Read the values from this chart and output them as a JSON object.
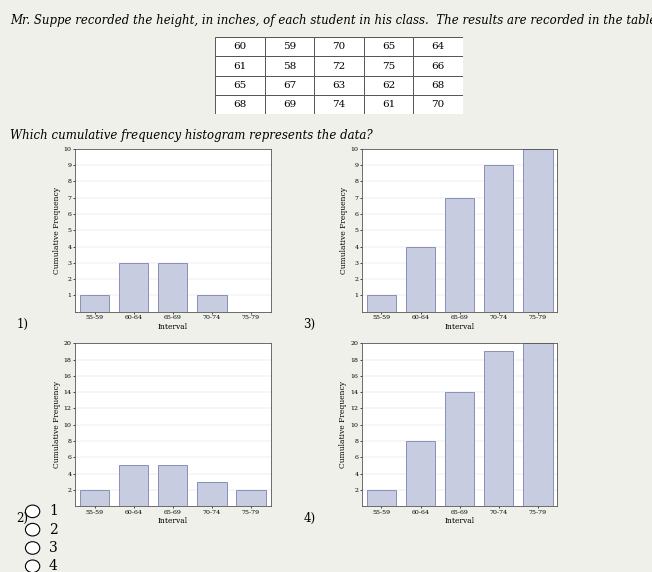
{
  "title_text": "Mr. Suppe recorded the height, in inches, of each student in his class.  The results are recorded in the table below.",
  "question_text": "Which cumulative frequency histogram represents the data?",
  "table_data": [
    [
      60,
      59,
      70,
      65,
      64
    ],
    [
      61,
      58,
      72,
      75,
      66
    ],
    [
      65,
      67,
      63,
      62,
      68
    ],
    [
      68,
      69,
      74,
      61,
      70
    ]
  ],
  "intervals": [
    "55-59",
    "60-64",
    "65-69",
    "70-74",
    "75-79"
  ],
  "hist1_values": [
    1,
    3,
    3,
    1,
    0
  ],
  "hist1_ylim": 10,
  "hist1_yticks": [
    1,
    2,
    3,
    4,
    5,
    6,
    7,
    8,
    9,
    10
  ],
  "hist2_values": [
    2,
    5,
    5,
    3,
    2
  ],
  "hist2_ylim": 20,
  "hist2_yticks": [
    2,
    4,
    6,
    8,
    10,
    12,
    14,
    16,
    18,
    20
  ],
  "hist3_values": [
    1,
    4,
    7,
    9,
    10
  ],
  "hist3_ylim": 10,
  "hist3_yticks": [
    1,
    2,
    3,
    4,
    5,
    6,
    7,
    8,
    9,
    10
  ],
  "hist4_values": [
    2,
    8,
    14,
    19,
    20
  ],
  "hist4_ylim": 20,
  "hist4_yticks": [
    2,
    4,
    6,
    8,
    10,
    12,
    14,
    16,
    18,
    20
  ],
  "bar_color": "#c8cce0",
  "bar_edge_color": "#8890b8",
  "background_color": "#f0f0ea",
  "answer_options": [
    "1",
    "2",
    "3",
    "4"
  ],
  "xlabel": "Interval",
  "ylabel": "Cumulative Frequency",
  "title_fontsize": 8.5,
  "question_fontsize": 8.5,
  "axis_label_fontsize": 5.5,
  "tick_fontsize": 4.5,
  "label_fontsize": 8.5
}
